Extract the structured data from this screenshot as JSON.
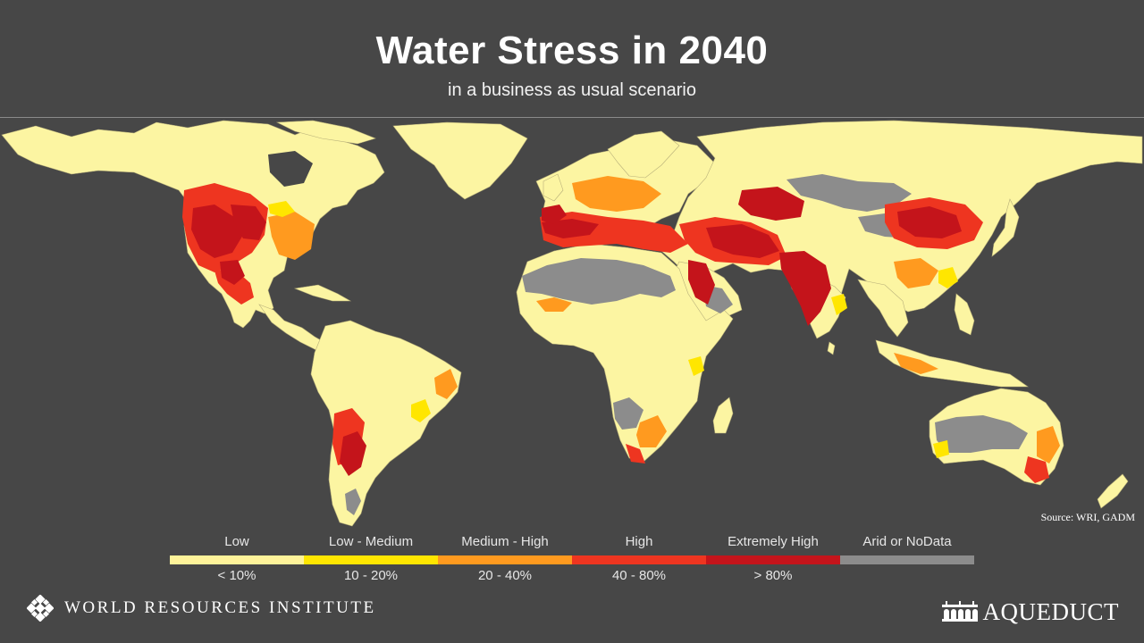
{
  "header": {
    "title": "Water Stress in 2040",
    "subtitle": "in a business as usual scenario"
  },
  "map": {
    "ocean_color": "#474747",
    "land_color": "#fcf5a2",
    "border_color": "#9a9a6a"
  },
  "source": "Source: WRI, GADM",
  "legend": [
    {
      "label": "Low",
      "range": "< 10%",
      "color": "#fff39a"
    },
    {
      "label": "Low - Medium",
      "range": "10 - 20%",
      "color": "#ffe600"
    },
    {
      "label": "Medium - High",
      "range": "20 - 40%",
      "color": "#ff9a1f"
    },
    {
      "label": "High",
      "range": "40 - 80%",
      "color": "#ee3520"
    },
    {
      "label": "Extremely High",
      "range": "> 80%",
      "color": "#c4141b"
    },
    {
      "label": "Arid or NoData",
      "range": "",
      "color": "#8c8c8c"
    }
  ],
  "footer": {
    "wri": "WORLD RESOURCES INSTITUTE",
    "aqueduct": "AQUEDUCT"
  }
}
